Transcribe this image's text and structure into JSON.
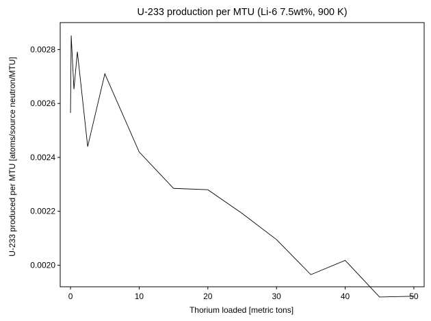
{
  "chart_data": {
    "type": "line",
    "title": "U-233 production per MTU (Li-6 7.5wt%, 900 K)",
    "xlabel": "Thorium loaded [metric tons]",
    "ylabel": "U-233 produced per MTU [atoms/source neutron/MTU]",
    "xlim": [
      -1.5,
      51.5
    ],
    "ylim": [
      0.00192,
      0.0029
    ],
    "x_ticks": [
      0,
      10,
      20,
      30,
      40,
      50
    ],
    "y_ticks": [
      0.002,
      0.0022,
      0.0024,
      0.0026,
      0.0028
    ],
    "x_tick_labels": [
      "0",
      "10",
      "20",
      "30",
      "40",
      "50"
    ],
    "y_tick_labels": [
      "0.0020",
      "0.0022",
      "0.0024",
      "0.0026",
      "0.0028"
    ],
    "grid": false,
    "line_color": "#000000",
    "x": [
      0,
      0.1,
      0.5,
      1,
      2.5,
      5,
      10,
      15,
      20,
      25,
      30,
      35,
      40,
      45,
      50
    ],
    "y": [
      0.002565,
      0.002852,
      0.002653,
      0.002792,
      0.00244,
      0.00271,
      0.00242,
      0.002285,
      0.00228,
      0.002192,
      0.002095,
      0.001965,
      0.002018,
      0.001882,
      0.001885
    ]
  }
}
